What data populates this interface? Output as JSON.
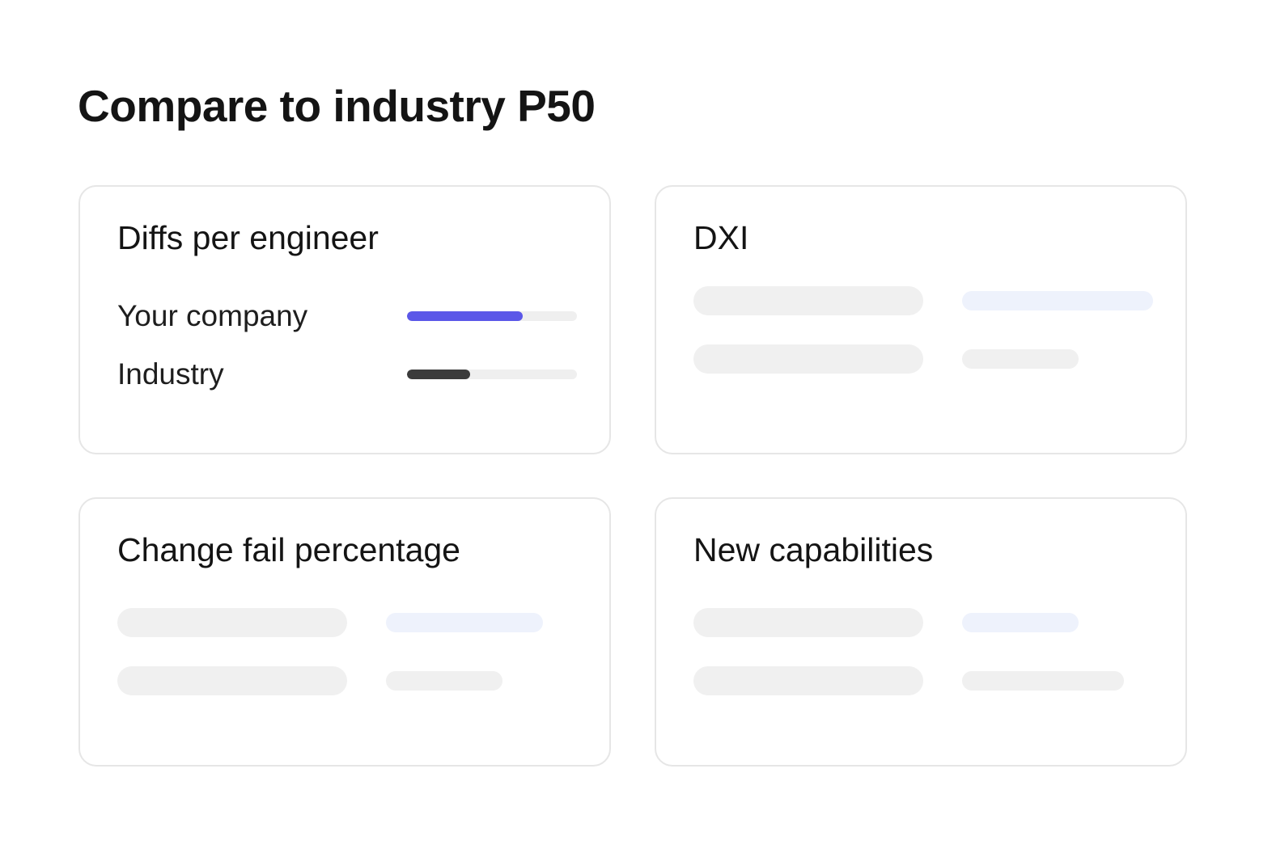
{
  "page": {
    "title": "Compare to industry P50"
  },
  "colors": {
    "accent": "#5b57e8",
    "industry_bar": "#3b3b3b",
    "track": "#efefef",
    "skeleton_gray": "#f0f0f0",
    "skeleton_blue": "#eef2fc"
  },
  "cards": [
    {
      "title": "Diffs per engineer",
      "metrics": [
        {
          "label": "Your company",
          "value": 0.68
        },
        {
          "label": "Industry",
          "value": 0.37
        }
      ]
    },
    {
      "title": "DXI"
    },
    {
      "title": "Change fail percentage"
    },
    {
      "title": "New capabilities"
    }
  ]
}
